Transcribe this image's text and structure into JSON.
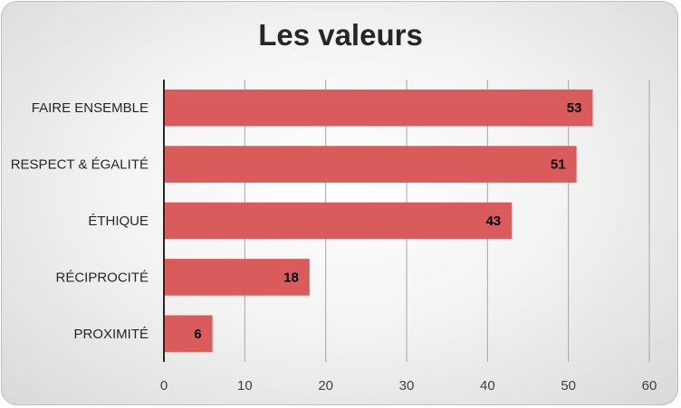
{
  "chart_data": {
    "type": "bar",
    "orientation": "horizontal",
    "title": "Les valeurs",
    "categories": [
      "FAIRE ENSEMBLE",
      "RESPECT & ÉGALITÉ",
      "ÉTHIQUE",
      "RÉCIPROCITÉ",
      "PROXIMITÉ"
    ],
    "values": [
      53,
      51,
      43,
      18,
      6
    ],
    "xlim": [
      0,
      60
    ],
    "xticks": [
      0,
      10,
      20,
      30,
      40,
      50,
      60
    ],
    "xlabel": "",
    "ylabel": "",
    "grid": true,
    "data_labels": true,
    "bar_color": "#d95b5b",
    "legend": "none"
  }
}
